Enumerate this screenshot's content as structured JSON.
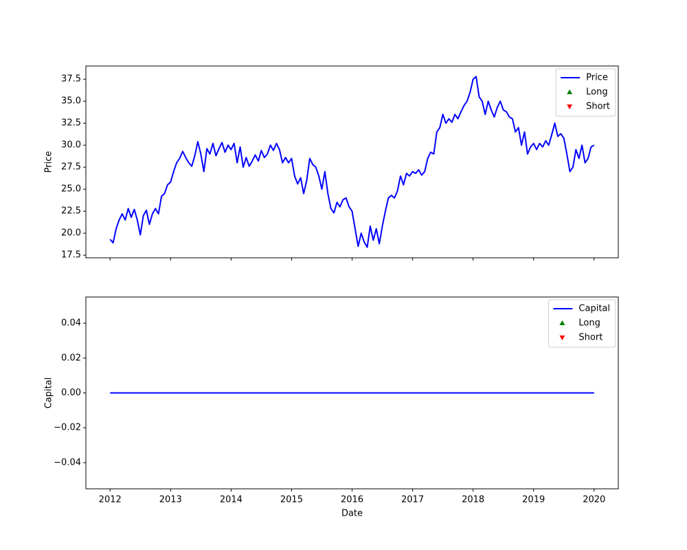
{
  "chart_data": [
    {
      "type": "line",
      "ylabel": "Price",
      "x": [
        2012.0,
        2012.05,
        2012.1,
        2012.15,
        2012.2,
        2012.25,
        2012.3,
        2012.35,
        2012.4,
        2012.45,
        2012.5,
        2012.55,
        2012.6,
        2012.65,
        2012.7,
        2012.75,
        2012.8,
        2012.85,
        2012.9,
        2012.95,
        2013.0,
        2013.05,
        2013.1,
        2013.15,
        2013.2,
        2013.25,
        2013.3,
        2013.35,
        2013.4,
        2013.45,
        2013.5,
        2013.55,
        2013.6,
        2013.65,
        2013.7,
        2013.75,
        2013.8,
        2013.85,
        2013.9,
        2013.95,
        2014.0,
        2014.05,
        2014.1,
        2014.15,
        2014.2,
        2014.25,
        2014.3,
        2014.35,
        2014.4,
        2014.45,
        2014.5,
        2014.55,
        2014.6,
        2014.65,
        2014.7,
        2014.75,
        2014.8,
        2014.85,
        2014.9,
        2014.95,
        2015.0,
        2015.05,
        2015.1,
        2015.15,
        2015.2,
        2015.25,
        2015.3,
        2015.35,
        2015.4,
        2015.45,
        2015.5,
        2015.55,
        2015.6,
        2015.65,
        2015.7,
        2015.75,
        2015.8,
        2015.85,
        2015.9,
        2015.95,
        2016.0,
        2016.05,
        2016.1,
        2016.15,
        2016.2,
        2016.25,
        2016.3,
        2016.35,
        2016.4,
        2016.45,
        2016.5,
        2016.55,
        2016.6,
        2016.65,
        2016.7,
        2016.75,
        2016.8,
        2016.85,
        2016.9,
        2016.95,
        2017.0,
        2017.05,
        2017.1,
        2017.15,
        2017.2,
        2017.25,
        2017.3,
        2017.35,
        2017.4,
        2017.45,
        2017.5,
        2017.55,
        2017.6,
        2017.65,
        2017.7,
        2017.75,
        2017.8,
        2017.85,
        2017.9,
        2017.95,
        2018.0,
        2018.05,
        2018.1,
        2018.15,
        2018.2,
        2018.25,
        2018.3,
        2018.35,
        2018.4,
        2018.45,
        2018.5,
        2018.55,
        2018.6,
        2018.65,
        2018.7,
        2018.75,
        2018.8,
        2018.85,
        2018.9,
        2018.95,
        2019.0,
        2019.05,
        2019.1,
        2019.15,
        2019.2,
        2019.25,
        2019.3,
        2019.35,
        2019.4,
        2019.45,
        2019.5,
        2019.55,
        2019.6,
        2019.65,
        2019.7,
        2019.75,
        2019.8,
        2019.85,
        2019.9,
        2019.95,
        2020.0
      ],
      "series": [
        {
          "name": "Price",
          "color": "#0000ff",
          "values": [
            19.3,
            18.9,
            20.5,
            21.5,
            22.2,
            21.5,
            22.8,
            21.8,
            22.7,
            21.5,
            19.8,
            22.0,
            22.6,
            21.0,
            22.2,
            22.8,
            22.2,
            24.2,
            24.5,
            25.5,
            25.8,
            27.0,
            28.0,
            28.5,
            29.3,
            28.6,
            28.0,
            27.6,
            28.8,
            30.4,
            29.0,
            27.0,
            29.6,
            29.0,
            30.2,
            28.8,
            29.6,
            30.3,
            29.2,
            30.0,
            29.5,
            30.2,
            28.0,
            29.8,
            27.5,
            28.6,
            27.6,
            28.2,
            28.9,
            28.2,
            29.4,
            28.6,
            29.0,
            30.0,
            29.4,
            30.2,
            29.5,
            28.0,
            28.6,
            28.0,
            28.5,
            26.5,
            25.6,
            26.3,
            24.5,
            26.0,
            28.5,
            27.8,
            27.5,
            26.5,
            25.0,
            27.0,
            24.5,
            22.8,
            22.3,
            23.5,
            23.0,
            23.8,
            24.0,
            23.0,
            22.5,
            20.5,
            18.5,
            20.0,
            19.0,
            18.4,
            20.8,
            19.2,
            20.5,
            18.8,
            20.8,
            22.5,
            24.0,
            24.3,
            24.0,
            24.8,
            26.5,
            25.5,
            26.8,
            26.5,
            27.0,
            26.8,
            27.2,
            26.6,
            27.0,
            28.5,
            29.2,
            29.0,
            31.5,
            32.0,
            33.5,
            32.5,
            33.0,
            32.6,
            33.5,
            33.0,
            33.8,
            34.5,
            35.0,
            36.0,
            37.5,
            37.8,
            35.5,
            35.0,
            33.5,
            35.0,
            34.0,
            33.2,
            34.3,
            35.0,
            34.0,
            33.8,
            33.2,
            33.0,
            31.5,
            32.0,
            30.0,
            31.5,
            29.0,
            29.8,
            30.2,
            29.5,
            30.2,
            29.8,
            30.5,
            30.0,
            31.2,
            32.5,
            31.0,
            31.3,
            30.8,
            29.0,
            27.0,
            27.5,
            29.5,
            28.5,
            30.0,
            28.0,
            28.5,
            29.8,
            30.0
          ]
        }
      ],
      "markers": [
        {
          "name": "Long",
          "color": "#008000",
          "marker": "^"
        },
        {
          "name": "Short",
          "color": "#ff0000",
          "marker": "v"
        }
      ],
      "legend": "upper right",
      "xlim": [
        2011.6,
        2020.4
      ],
      "xticks": [
        2012,
        2013,
        2014,
        2015,
        2016,
        2017,
        2018,
        2019,
        2020
      ],
      "xticklabels": false,
      "ylim": [
        17.2,
        39.0
      ],
      "yticks": [
        17.5,
        {
          "value": 20,
          "label": "20.0"
        },
        22.5,
        {
          "value": 25,
          "label": "25.0"
        },
        27.5,
        {
          "value": 30,
          "label": "30.0"
        },
        32.5,
        {
          "value": 35,
          "label": "35.0"
        },
        37.5
      ]
    },
    {
      "type": "line",
      "xlabel": "Date",
      "ylabel": "Capital",
      "x": [
        2012,
        2020
      ],
      "series": [
        {
          "name": "Capital",
          "color": "#0000ff",
          "values": [
            0,
            0
          ]
        }
      ],
      "markers": [
        {
          "name": "Long",
          "color": "#008000",
          "marker": "^"
        },
        {
          "name": "Short",
          "color": "#ff0000",
          "marker": "v"
        }
      ],
      "legend": "upper right",
      "xlim": [
        2011.6,
        2020.4
      ],
      "xticks": [
        2012,
        2013,
        2014,
        2015,
        2016,
        2017,
        2018,
        2019,
        2020
      ],
      "xticklabels": true,
      "ylim": [
        -0.055,
        0.055
      ],
      "yticks": [
        {
          "value": -0.04,
          "label": "−0.04"
        },
        {
          "value": -0.02,
          "label": "−0.02"
        },
        {
          "value": 0,
          "label": "0.00"
        },
        0.02,
        0.04
      ]
    }
  ]
}
